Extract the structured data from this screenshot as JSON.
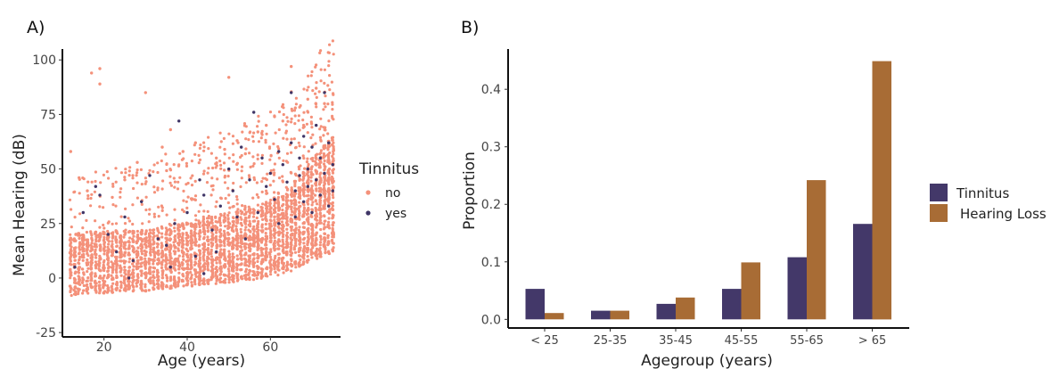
{
  "chart_data": [
    {
      "panel_label": "A)",
      "type": "scatter",
      "title": "",
      "xlabel": "Age (years)",
      "ylabel": "Mean Hearing (dB)",
      "xlim": [
        10,
        76
      ],
      "ylim": [
        -27,
        105
      ],
      "xticks": [
        "20",
        "40",
        "60"
      ],
      "xtick_values": [
        20,
        40,
        60
      ],
      "yticks": [
        "-25",
        "0",
        "25",
        "50",
        "75",
        "100"
      ],
      "ytick_values": [
        -25,
        0,
        25,
        50,
        75,
        100
      ],
      "grid": false,
      "legend": {
        "title": "Tinnitus",
        "placement": "right",
        "entries": [
          {
            "label": "no",
            "color": "#f4917a"
          },
          {
            "label": "yes",
            "color": "#3f3566"
          }
        ]
      },
      "series": [
        {
          "name": "no",
          "color": "#f4917a",
          "points": [
            [
              17,
              94
            ],
            [
              19,
              96
            ],
            [
              19,
              89
            ],
            [
              30,
              85
            ],
            [
              50,
              92
            ],
            [
              65,
              97
            ],
            [
              28,
              53
            ],
            [
              34,
              60
            ],
            [
              36,
              68
            ],
            [
              39,
              58
            ],
            [
              42,
              62
            ],
            [
              47,
              55
            ],
            [
              49,
              59
            ],
            [
              52,
              63
            ],
            [
              54,
              57
            ],
            [
              57,
              67
            ],
            [
              59,
              70
            ],
            [
              61,
              74
            ],
            [
              63,
              72
            ],
            [
              66,
              78
            ],
            [
              69,
              82
            ],
            [
              71,
              87
            ],
            [
              73,
              80
            ],
            [
              12,
              58
            ],
            [
              14,
              46
            ],
            [
              16,
              40
            ],
            [
              22,
              37
            ],
            [
              25,
              45
            ]
          ],
          "band_by_age": [
            [
              12,
              -8,
              20
            ],
            [
              15,
              -7,
              21
            ],
            [
              20,
              -7,
              22
            ],
            [
              25,
              -6,
              22
            ],
            [
              30,
              -6,
              22
            ],
            [
              35,
              -5,
              24
            ],
            [
              40,
              -4,
              26
            ],
            [
              45,
              -3,
              28
            ],
            [
              50,
              -2,
              30
            ],
            [
              55,
              -1,
              32
            ],
            [
              60,
              0,
              36
            ],
            [
              65,
              3,
              42
            ],
            [
              70,
              8,
              55
            ],
            [
              75,
              12,
              65
            ]
          ]
        },
        {
          "name": "yes",
          "color": "#3f3566",
          "points": [
            [
              13,
              5
            ],
            [
              15,
              30
            ],
            [
              18,
              42
            ],
            [
              19,
              38
            ],
            [
              21,
              20
            ],
            [
              23,
              12
            ],
            [
              25,
              28
            ],
            [
              27,
              8
            ],
            [
              29,
              35
            ],
            [
              31,
              47
            ],
            [
              33,
              18
            ],
            [
              35,
              15
            ],
            [
              37,
              25
            ],
            [
              38,
              72
            ],
            [
              40,
              30
            ],
            [
              42,
              10
            ],
            [
              43,
              45
            ],
            [
              44,
              38
            ],
            [
              46,
              22
            ],
            [
              48,
              33
            ],
            [
              50,
              50
            ],
            [
              51,
              40
            ],
            [
              52,
              28
            ],
            [
              53,
              60
            ],
            [
              54,
              18
            ],
            [
              55,
              45
            ],
            [
              56,
              76
            ],
            [
              57,
              30
            ],
            [
              58,
              55
            ],
            [
              59,
              42
            ],
            [
              60,
              48
            ],
            [
              61,
              36
            ],
            [
              62,
              58
            ],
            [
              62,
              25
            ],
            [
              63,
              52
            ],
            [
              64,
              44
            ],
            [
              65,
              85
            ],
            [
              65,
              62
            ],
            [
              66,
              40
            ],
            [
              66,
              28
            ],
            [
              67,
              55
            ],
            [
              67,
              47
            ],
            [
              68,
              65
            ],
            [
              68,
              35
            ],
            [
              69,
              50
            ],
            [
              69,
              42
            ],
            [
              70,
              60
            ],
            [
              70,
              30
            ],
            [
              71,
              45
            ],
            [
              71,
              70
            ],
            [
              72,
              38
            ],
            [
              72,
              55
            ],
            [
              73,
              85
            ],
            [
              73,
              48
            ],
            [
              74,
              62
            ],
            [
              74,
              33
            ],
            [
              75,
              52
            ],
            [
              75,
              40
            ],
            [
              36,
              5
            ],
            [
              44,
              2
            ],
            [
              26,
              0
            ],
            [
              47,
              12
            ]
          ]
        }
      ]
    },
    {
      "panel_label": "B)",
      "type": "bar",
      "title": "",
      "xlabel": "Agegroup (years)",
      "ylabel": "Proportion",
      "ylim": [
        -0.015,
        0.47
      ],
      "yticks": [
        "0.0",
        "0.1",
        "0.2",
        "0.3",
        "0.4"
      ],
      "ytick_values": [
        0.0,
        0.1,
        0.2,
        0.3,
        0.4
      ],
      "grid": false,
      "categories": [
        "< 25",
        "25-35",
        "35-45",
        "45-55",
        "55-65",
        "> 65"
      ],
      "legend": {
        "placement": "right"
      },
      "series": [
        {
          "name": "Tinnitus",
          "color": "#433869",
          "values": [
            0.053,
            0.015,
            0.027,
            0.053,
            0.108,
            0.166
          ]
        },
        {
          "name": "Hearing Loss",
          "color": "#a86c35",
          "values": [
            0.011,
            0.015,
            0.038,
            0.099,
            0.242,
            0.449
          ]
        }
      ]
    }
  ]
}
